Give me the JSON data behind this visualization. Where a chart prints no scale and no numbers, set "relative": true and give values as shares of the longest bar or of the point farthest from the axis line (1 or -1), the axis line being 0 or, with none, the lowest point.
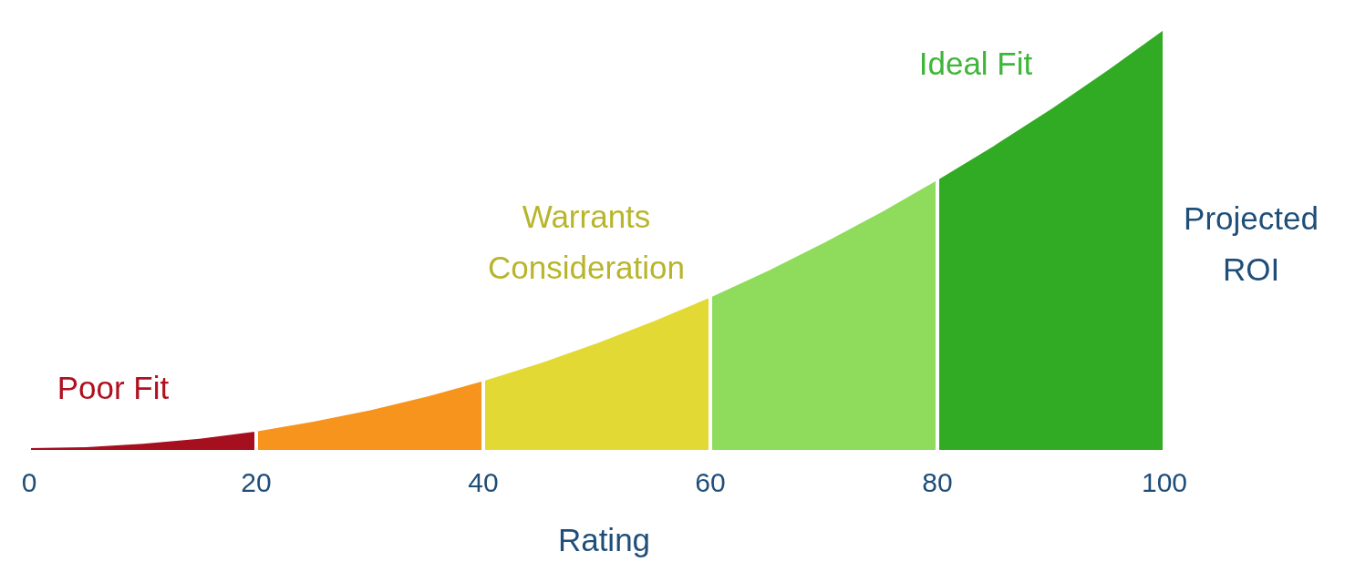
{
  "chart_data": {
    "type": "area",
    "relative": true,
    "xlabel": "Rating",
    "ylabel": "Projected ROI",
    "xlim": [
      0,
      100
    ],
    "xticks": [
      0,
      20,
      40,
      60,
      80,
      100
    ],
    "series": [
      {
        "color": "#a50f1e",
        "x": [
          0,
          5,
          10,
          15,
          20
        ],
        "values": [
          0.013,
          0.015,
          0.023,
          0.035,
          0.052
        ]
      },
      {
        "color": "#f7941d",
        "x": [
          20,
          25,
          30,
          35,
          40
        ],
        "values": [
          0.052,
          0.075,
          0.102,
          0.134,
          0.171
        ]
      },
      {
        "color": "#e2d934",
        "x": [
          40,
          45,
          50,
          55,
          60
        ],
        "values": [
          0.171,
          0.213,
          0.26,
          0.312,
          0.368
        ]
      },
      {
        "color": "#8fdc5c",
        "x": [
          60,
          65,
          70,
          75,
          80
        ],
        "values": [
          0.368,
          0.43,
          0.497,
          0.568,
          0.645
        ]
      },
      {
        "color": "#31ab24",
        "x": [
          80,
          85,
          90,
          95,
          100
        ],
        "values": [
          0.645,
          0.726,
          0.812,
          0.904,
          1
        ]
      }
    ],
    "annotations": [
      "Poor Fit",
      "Warrants Consideration",
      "Ideal Fit"
    ]
  }
}
